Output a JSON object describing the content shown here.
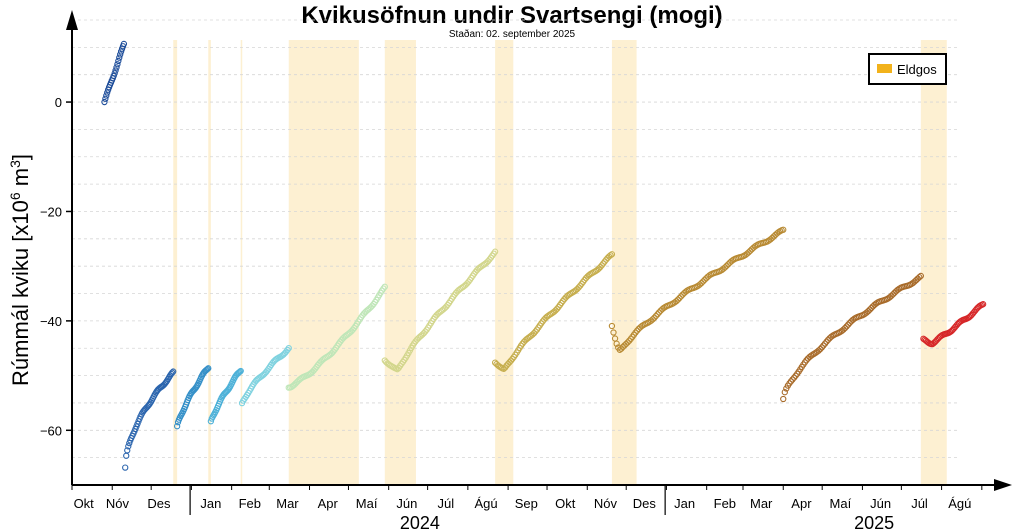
{
  "chart_data": {
    "type": "scatter",
    "title": "Kvikusöfnun undir Svartsengi (mogi)",
    "subtitle": "Staðan: 02. september 2025",
    "ylabel_main": "Rúmmál kviku [x10",
    "ylabel_sup": "6",
    "ylabel_unit": " m",
    "ylabel_sup2": "3",
    "ylabel_close": "]",
    "xlim": [
      "2023-10-01",
      "2025-09-15"
    ],
    "ylim": [
      -70,
      15
    ],
    "yticks": [
      {
        "value": 0,
        "label": "0"
      },
      {
        "value": -20,
        "label": "−20"
      },
      {
        "value": -40,
        "label": "−40"
      },
      {
        "value": -60,
        "label": "−60"
      }
    ],
    "month_labels": [
      {
        "date": "2023-10-10",
        "label": "Okt"
      },
      {
        "date": "2023-11-05",
        "label": "Nóv"
      },
      {
        "date": "2023-12-07",
        "label": "Des"
      },
      {
        "date": "2024-01-16",
        "label": "Jan"
      },
      {
        "date": "2024-02-15",
        "label": "Feb"
      },
      {
        "date": "2024-03-15",
        "label": "Mar"
      },
      {
        "date": "2024-04-15",
        "label": "Apr"
      },
      {
        "date": "2024-05-15",
        "label": "Maí"
      },
      {
        "date": "2024-06-15",
        "label": "Jún"
      },
      {
        "date": "2024-07-15",
        "label": "Júl"
      },
      {
        "date": "2024-08-15",
        "label": "Ágú"
      },
      {
        "date": "2024-09-15",
        "label": "Sep"
      },
      {
        "date": "2024-10-15",
        "label": "Okt"
      },
      {
        "date": "2024-11-15",
        "label": "Nóv"
      },
      {
        "date": "2024-12-15",
        "label": "Des"
      },
      {
        "date": "2025-01-15",
        "label": "Jan"
      },
      {
        "date": "2025-02-15",
        "label": "Feb"
      },
      {
        "date": "2025-03-15",
        "label": "Mar"
      },
      {
        "date": "2025-04-15",
        "label": "Apr"
      },
      {
        "date": "2025-05-15",
        "label": "Maí"
      },
      {
        "date": "2025-06-15",
        "label": "Jún"
      },
      {
        "date": "2025-07-15",
        "label": "Júl"
      },
      {
        "date": "2025-08-15",
        "label": "Ágú"
      }
    ],
    "year_labels": [
      {
        "date": "2024-06-25",
        "label": "2024"
      },
      {
        "date": "2025-06-10",
        "label": "2025"
      }
    ],
    "year_separators": [
      "2023-12-31",
      "2024-12-31"
    ],
    "legend": {
      "label": "Eldgos",
      "color": "#f2b21b",
      "placement": "top-right"
    },
    "eruptions": [
      {
        "start": "2023-12-18",
        "end": "2023-12-21"
      },
      {
        "start": "2024-01-14",
        "end": "2024-01-16"
      },
      {
        "start": "2024-02-08",
        "end": "2024-02-09"
      },
      {
        "start": "2024-03-16",
        "end": "2024-05-09"
      },
      {
        "start": "2024-05-29",
        "end": "2024-06-22"
      },
      {
        "start": "2024-08-22",
        "end": "2024-09-05"
      },
      {
        "start": "2024-11-20",
        "end": "2024-12-09"
      },
      {
        "start": "2025-07-16",
        "end": "2025-08-05"
      }
    ],
    "series": [
      {
        "color": "#1f4e9a",
        "start_date": "2023-10-26",
        "end_date": "2023-11-10",
        "y_start": 0.0,
        "y_end": 10.5,
        "points": 22,
        "curve": 1.0
      },
      {
        "color": "#2a64ad",
        "start_date": "2023-11-11",
        "end_date": "2023-12-18",
        "y_start": -67.0,
        "y_end": -49.5,
        "points": 48,
        "curve": 0.55
      },
      {
        "color": "#3590c8",
        "start_date": "2023-12-21",
        "end_date": "2024-01-14",
        "y_start": -59.5,
        "y_end": -48.5,
        "points": 36,
        "curve": 0.75
      },
      {
        "color": "#4db1d8",
        "start_date": "2024-01-16",
        "end_date": "2024-02-08",
        "y_start": -58.5,
        "y_end": -49.0,
        "points": 34,
        "curve": 0.8
      },
      {
        "color": "#7fd2df",
        "start_date": "2024-02-09",
        "end_date": "2024-03-16",
        "y_start": -55.0,
        "y_end": -45.0,
        "points": 38,
        "curve": 0.8
      },
      {
        "color": "#bfe6b8",
        "start_date": "2024-03-16",
        "end_date": "2024-05-29",
        "y_start": -52.0,
        "y_end": -34.0,
        "points": 70,
        "curve": 1.3
      },
      {
        "color": "#d2d68c",
        "start_date": "2024-05-29",
        "end_date": "2024-08-22",
        "y_start": -47.0,
        "y_end": -27.5,
        "points": 80,
        "curve": 0.85,
        "dip_to": -49.0,
        "dip_frac": 0.12
      },
      {
        "color": "#c6ae4e",
        "start_date": "2024-08-22",
        "end_date": "2024-11-20",
        "y_start": -47.5,
        "y_end": -28.0,
        "points": 82,
        "curve": 0.85,
        "dip_to": -49.0,
        "dip_frac": 0.08
      },
      {
        "color": "#b88a33",
        "start_date": "2024-11-20",
        "end_date": "2025-04-01",
        "y_start": -41.0,
        "y_end": -23.5,
        "points": 110,
        "curve": 0.8,
        "dip_to": -45.5,
        "dip_frac": 0.05
      },
      {
        "color": "#a86b2a",
        "start_date": "2025-04-01",
        "end_date": "2025-07-16",
        "y_start": -54.5,
        "y_end": -32.0,
        "points": 90,
        "curve": 0.65
      },
      {
        "color": "#d62728",
        "start_date": "2025-07-18",
        "end_date": "2025-09-02",
        "y_start": -43.5,
        "y_end": -37.0,
        "points": 48,
        "curve": 1.1,
        "dip_to": -44.0,
        "dip_frac": 0.15
      }
    ]
  }
}
